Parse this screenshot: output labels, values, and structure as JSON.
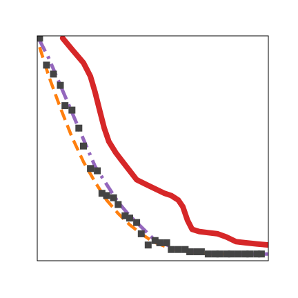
{
  "chart_data": {
    "type": "line",
    "title": "",
    "xlabel": "",
    "ylabel": "",
    "xlim": [
      0,
      1
    ],
    "ylim": [
      0,
      1
    ],
    "grid": false,
    "legend": "none",
    "series": [
      {
        "kind": "line",
        "style": "solid",
        "color": "#d62728",
        "x": [
          0.11,
          0.15,
          0.2,
          0.23,
          0.25,
          0.27,
          0.29,
          0.31,
          0.34,
          0.37,
          0.4,
          0.43,
          0.47,
          0.51,
          0.55,
          0.58,
          0.61,
          0.63,
          0.65,
          0.67,
          0.7,
          0.74,
          0.78,
          0.82,
          0.86,
          0.9,
          0.95,
          1.0
        ],
        "y": [
          0.99,
          0.94,
          0.88,
          0.82,
          0.75,
          0.67,
          0.59,
          0.53,
          0.48,
          0.44,
          0.4,
          0.36,
          0.34,
          0.32,
          0.3,
          0.29,
          0.27,
          0.24,
          0.18,
          0.14,
          0.13,
          0.125,
          0.12,
          0.105,
          0.085,
          0.08,
          0.075,
          0.07
        ]
      },
      {
        "kind": "line",
        "style": "dashdot",
        "color": "#9467bd",
        "x": [
          0.01,
          0.05,
          0.1,
          0.15,
          0.2,
          0.25,
          0.3,
          0.35,
          0.4,
          0.45,
          0.5,
          0.55,
          0.6,
          0.65,
          0.7,
          0.75,
          0.8,
          0.85,
          0.9,
          0.95,
          1.0
        ],
        "y": [
          0.98,
          0.9,
          0.78,
          0.66,
          0.54,
          0.42,
          0.34,
          0.26,
          0.2,
          0.15,
          0.1,
          0.075,
          0.055,
          0.045,
          0.04,
          0.035,
          0.03,
          0.03,
          0.03,
          0.03,
          0.03
        ]
      },
      {
        "kind": "line",
        "style": "dashed",
        "color": "#ff7f0e",
        "x": [
          0.01,
          0.05,
          0.1,
          0.15,
          0.2,
          0.25,
          0.3,
          0.35,
          0.4,
          0.45,
          0.5,
          0.55,
          0.6,
          0.65,
          0.7,
          0.75,
          0.8,
          0.85,
          0.9,
          0.95,
          1.0
        ],
        "y": [
          0.95,
          0.82,
          0.68,
          0.55,
          0.44,
          0.35,
          0.27,
          0.21,
          0.16,
          0.12,
          0.085,
          0.065,
          0.05,
          0.04,
          0.035,
          0.03,
          0.03,
          0.03,
          0.03,
          0.03,
          0.03
        ]
      },
      {
        "kind": "scatter",
        "marker": "square",
        "color": "#444444",
        "x": [
          0.01,
          0.04,
          0.07,
          0.1,
          0.12,
          0.15,
          0.18,
          0.2,
          0.23,
          0.26,
          0.28,
          0.3,
          0.33,
          0.35,
          0.38,
          0.4,
          0.43,
          0.45,
          0.48,
          0.51,
          0.53,
          0.56,
          0.58,
          0.61,
          0.64,
          0.66,
          0.69,
          0.71,
          0.74,
          0.77,
          0.79,
          0.82,
          0.84,
          0.87,
          0.9,
          0.92,
          0.95,
          0.97
        ],
        "y": [
          0.99,
          0.87,
          0.83,
          0.78,
          0.69,
          0.67,
          0.59,
          0.51,
          0.41,
          0.4,
          0.3,
          0.29,
          0.28,
          0.25,
          0.2,
          0.19,
          0.17,
          0.12,
          0.07,
          0.09,
          0.08,
          0.08,
          0.05,
          0.05,
          0.05,
          0.04,
          0.04,
          0.04,
          0.03,
          0.03,
          0.03,
          0.03,
          0.03,
          0.03,
          0.03,
          0.03,
          0.03,
          0.03
        ]
      }
    ]
  }
}
